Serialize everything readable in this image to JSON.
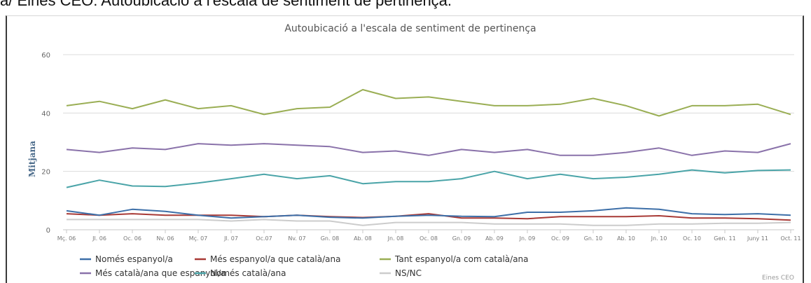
{
  "caption": "a/ Eines CEO: Autoubicació a l'escala de sentiment de pertinença.",
  "source": "Eines CEO",
  "chart_data": {
    "type": "line",
    "title": "Autoubicació a l'escala de sentiment de pertinença",
    "ylabel": "Mitjana",
    "xlabel": "",
    "ylim": [
      0,
      60
    ],
    "yticks": [
      0,
      20,
      40,
      60
    ],
    "grid": true,
    "legend_position": "bottom",
    "categories": [
      "Mç. 06",
      "Jl. 06",
      "Oc. 06",
      "Nv. 06",
      "Mç. 07",
      "Jl. 07",
      "Oc.07",
      "Nv. 07",
      "Gn. 08",
      "Ab. 08",
      "Jn. 08",
      "Oc. 08",
      "Gn. 09",
      "Ab. 09",
      "Jn. 09",
      "Oc. 09",
      "Gn. 10",
      "Ab. 10",
      "Jn. 10",
      "Oc. 10",
      "Gen. 11",
      "Juny 11",
      "Oct. 11"
    ],
    "series": [
      {
        "name": "Només espanyol/a",
        "color": "#3d6fa8",
        "values": [
          6.5,
          5,
          7,
          6.3,
          5,
          4,
          4.5,
          5,
          4.3,
          4,
          4.6,
          5,
          4.6,
          4.5,
          6,
          6,
          6.5,
          7.5,
          7,
          5.5,
          5.2,
          5.5,
          5
        ]
      },
      {
        "name": "Més espanyol/a que català/ana",
        "color": "#a83a36",
        "values": [
          5.5,
          5,
          5.5,
          5,
          5,
          5,
          4.5,
          5,
          4.5,
          4.2,
          4.6,
          5.5,
          4,
          4,
          3.8,
          4.5,
          4.5,
          4.5,
          4.8,
          4,
          4,
          3.8,
          3.3
        ]
      },
      {
        "name": "Tant espanyol/a com català/ana",
        "color": "#9aae54",
        "values": [
          42.5,
          44,
          41.5,
          44.5,
          41.5,
          42.5,
          39.5,
          41.5,
          42,
          48,
          45,
          45.5,
          44,
          42.5,
          42.5,
          43,
          45,
          42.5,
          39,
          42.5,
          42.5,
          43,
          39.5
        ]
      },
      {
        "name": "Més català/ana que espanyol/a",
        "color": "#8a72aa",
        "values": [
          27.5,
          26.5,
          28,
          27.5,
          29.5,
          29,
          29.5,
          29,
          28.5,
          26.5,
          27,
          25.5,
          27.5,
          26.5,
          27.5,
          25.5,
          25.5,
          26.5,
          28,
          25.5,
          27,
          26.5,
          29.5
        ]
      },
      {
        "name": "Només català/ana",
        "color": "#4aa4a8",
        "values": [
          14.5,
          17,
          15,
          14.8,
          16,
          17.5,
          19,
          17.5,
          18.5,
          15.8,
          16.5,
          16.5,
          17.5,
          20,
          17.5,
          19,
          17.5,
          18,
          19,
          20.5,
          19.5,
          20.3,
          20.5
        ]
      },
      {
        "name": "NS/NC",
        "color": "#cccccc",
        "values": [
          3.5,
          3.5,
          3.5,
          3.5,
          3.5,
          3,
          3.5,
          3,
          3,
          1.5,
          2.5,
          2.5,
          2.5,
          2,
          2,
          2,
          1.5,
          1.5,
          2,
          2,
          2.2,
          2.2,
          2.5
        ]
      }
    ]
  }
}
